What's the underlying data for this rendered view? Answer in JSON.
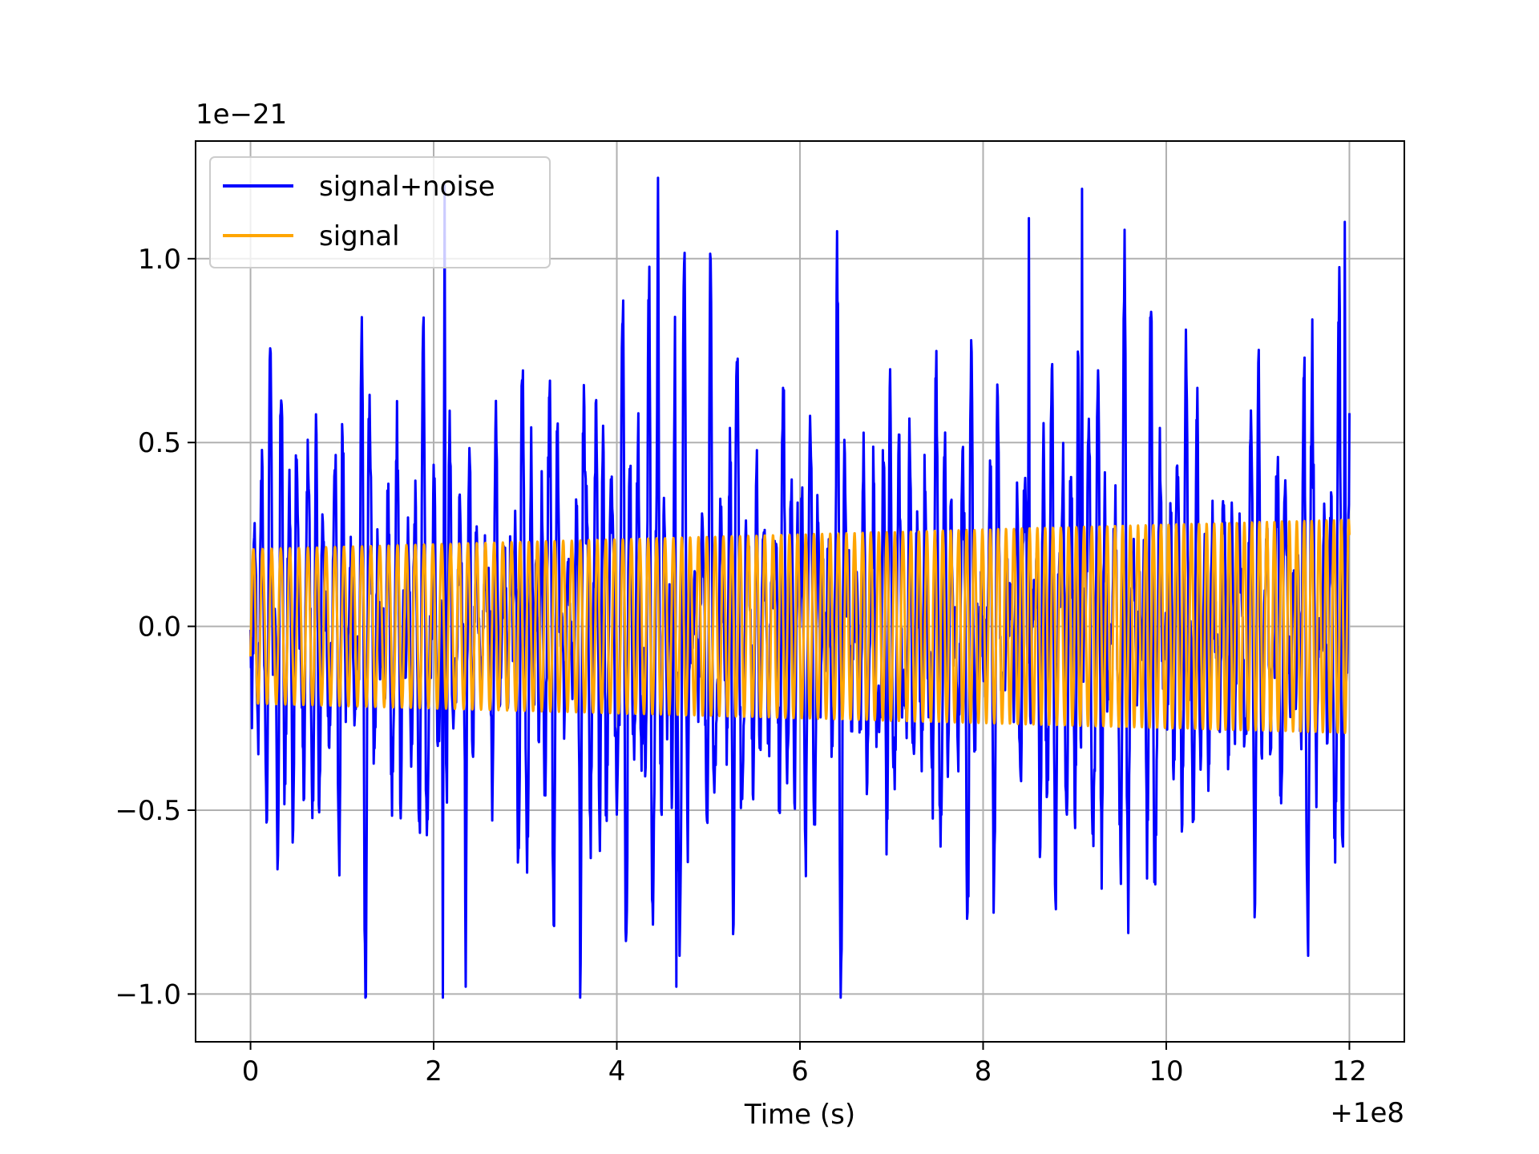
{
  "chart_data": {
    "type": "line",
    "title": "",
    "xlabel": "Time (s)",
    "ylabel": "",
    "x_offset_label": "+1e8",
    "y_scale_label": "1e−21",
    "xlim": [
      -0.6,
      12.6
    ],
    "ylim": [
      -1.13,
      1.32
    ],
    "x_ticks": [
      0,
      2,
      4,
      6,
      8,
      10,
      12
    ],
    "x_tick_labels": [
      "0",
      "2",
      "4",
      "6",
      "8",
      "10",
      "12"
    ],
    "y_ticks": [
      -1.0,
      -0.5,
      0.0,
      0.5,
      1.0
    ],
    "y_tick_labels": [
      "−1.0",
      "−0.5",
      "0.0",
      "0.5",
      "1.0"
    ],
    "grid": true,
    "legend_position": "top-left",
    "series": [
      {
        "name": "signal+noise",
        "color": "#0000ff",
        "x_range": [
          0,
          12
        ],
        "amplitude_range": [
          -1.01,
          1.22
        ],
        "peaks": [
          {
            "x": 2.12,
            "y": 1.2
          },
          {
            "x": 2.1,
            "y": -1.01
          },
          {
            "x": 4.45,
            "y": 1.22
          },
          {
            "x": 9.08,
            "y": 1.19
          },
          {
            "x": 11.95,
            "y": 1.1
          },
          {
            "x": 8.5,
            "y": 1.11
          },
          {
            "x": 4.65,
            "y": -0.98
          },
          {
            "x": 2.35,
            "y": -0.98
          }
        ]
      },
      {
        "name": "signal",
        "color": "#ffa500",
        "x_range": [
          0,
          12
        ],
        "amplitude_start": 0.21,
        "amplitude_end": 0.29,
        "cycles": 120
      }
    ]
  }
}
